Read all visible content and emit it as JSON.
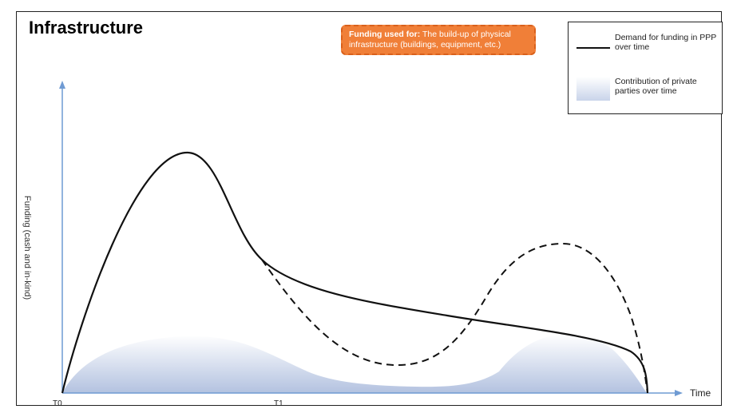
{
  "title": "Infrastructure",
  "callout": {
    "lead": "Funding used for:",
    "text": " The build-up of physical infrastructure (buildings, equipment, etc.)",
    "fill_color": "#f07f38"
  },
  "legend": {
    "demand_label": "Demand for funding in PPP over time",
    "contribution_label": "Contribution of private parties over time"
  },
  "axes": {
    "y_label": "Funding (cash and in-kind)",
    "x_label": "Time",
    "x_ticks": [
      "T0",
      "T1"
    ]
  },
  "colors": {
    "demand_line": "#111111",
    "contribution_fill_top": "#ffffff",
    "contribution_fill_bottom": "#b3c2e0",
    "axis": "#6f9bd3"
  }
}
